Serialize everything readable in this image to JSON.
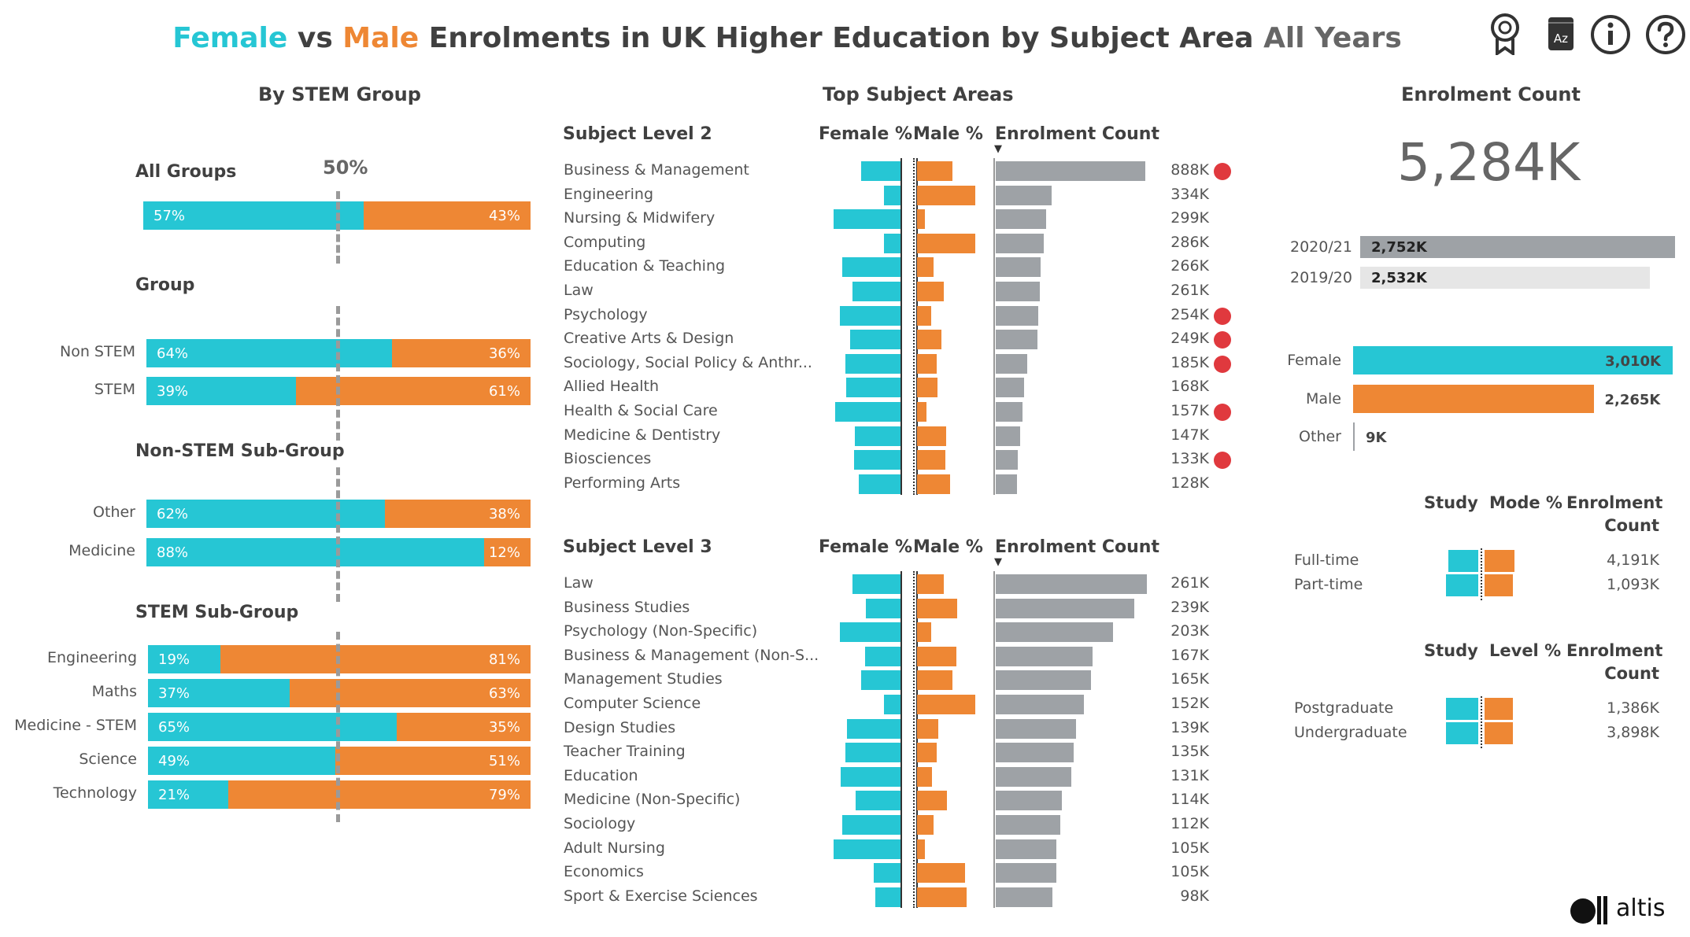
{
  "title": {
    "female": "Female",
    "vs": " vs ",
    "male": "Male",
    "rest": " Enrolments in UK Higher Education by Subject Area ",
    "years": "All Years"
  },
  "colors": {
    "female": "#26C6D4",
    "male": "#EE8734",
    "count": "#9EA2A6",
    "flag": "#E0393E"
  },
  "toolbar": {
    "icons": [
      "award-icon",
      "glossary-icon",
      "info-icon",
      "help-icon"
    ],
    "glossary_label": "Az"
  },
  "stem": {
    "header": "By STEM Group",
    "midline_label": "50%",
    "groups": [
      {
        "title": "All Groups",
        "rows": [
          {
            "label": "",
            "female": 57,
            "male": 43,
            "female_label": "57%",
            "male_label": "43%"
          }
        ]
      },
      {
        "title": "Group",
        "rows": [
          {
            "label": "Non STEM",
            "female": 64,
            "male": 36,
            "female_label": "64%",
            "male_label": "36%"
          },
          {
            "label": "STEM",
            "female": 39,
            "male": 61,
            "female_label": "39%",
            "male_label": "61%"
          }
        ]
      },
      {
        "title": "Non-STEM Sub-Group",
        "rows": [
          {
            "label": "Other",
            "female": 62,
            "male": 38,
            "female_label": "62%",
            "male_label": "38%"
          },
          {
            "label": "Medicine",
            "female": 88,
            "male": 12,
            "female_label": "88%",
            "male_label": "12%"
          }
        ]
      },
      {
        "title": "STEM Sub-Group",
        "rows": [
          {
            "label": "Engineering",
            "female": 19,
            "male": 81,
            "female_label": "19%",
            "male_label": "81%"
          },
          {
            "label": "Maths",
            "female": 37,
            "male": 63,
            "female_label": "37%",
            "male_label": "63%"
          },
          {
            "label": "Medicine - STEM",
            "female": 65,
            "male": 35,
            "female_label": "65%",
            "male_label": "35%"
          },
          {
            "label": "Science",
            "female": 49,
            "male": 51,
            "female_label": "49%",
            "male_label": "51%"
          },
          {
            "label": "Technology",
            "female": 21,
            "male": 79,
            "female_label": "21%",
            "male_label": "79%"
          }
        ]
      }
    ]
  },
  "top": {
    "header": "Top Subject Areas",
    "tables": [
      {
        "title": "Subject Level 2",
        "female_header": "Female %",
        "male_header": "Male %",
        "count_header": "Enrolment Count",
        "sort_indicator": "▼",
        "rows": [
          {
            "name": "Business & Management",
            "female": 53,
            "male": 47,
            "count": 888,
            "count_label": "888K",
            "flag": true
          },
          {
            "name": "Engineering",
            "female": 22,
            "male": 78,
            "count": 334,
            "count_label": "334K",
            "flag": false
          },
          {
            "name": "Nursing & Midwifery",
            "female": 89,
            "male": 11,
            "count": 299,
            "count_label": "299K",
            "flag": false
          },
          {
            "name": "Computing",
            "female": 22,
            "male": 78,
            "count": 286,
            "count_label": "286K",
            "flag": false
          },
          {
            "name": "Education & Teaching",
            "female": 78,
            "male": 22,
            "count": 266,
            "count_label": "266K",
            "flag": false
          },
          {
            "name": "Law",
            "female": 64,
            "male": 36,
            "count": 261,
            "count_label": "261K",
            "flag": false
          },
          {
            "name": "Psychology",
            "female": 81,
            "male": 19,
            "count": 254,
            "count_label": "254K",
            "flag": true
          },
          {
            "name": "Creative Arts & Design",
            "female": 67,
            "male": 33,
            "count": 249,
            "count_label": "249K",
            "flag": true
          },
          {
            "name": "Sociology, Social Policy & Anthr...",
            "female": 74,
            "male": 26,
            "count": 185,
            "count_label": "185K",
            "flag": true
          },
          {
            "name": "Allied Health",
            "female": 73,
            "male": 27,
            "count": 168,
            "count_label": "168K",
            "flag": false
          },
          {
            "name": "Health & Social Care",
            "female": 87,
            "male": 13,
            "count": 157,
            "count_label": "157K",
            "flag": true
          },
          {
            "name": "Medicine & Dentistry",
            "female": 61,
            "male": 39,
            "count": 147,
            "count_label": "147K",
            "flag": false
          },
          {
            "name": "Biosciences",
            "female": 62,
            "male": 38,
            "count": 133,
            "count_label": "133K",
            "flag": true
          },
          {
            "name": "Performing Arts",
            "female": 56,
            "male": 44,
            "count": 128,
            "count_label": "128K",
            "flag": false
          }
        ]
      },
      {
        "title": "Subject Level 3",
        "female_header": "Female %",
        "male_header": "Male %",
        "count_header": "Enrolment Count",
        "sort_indicator": "▼",
        "rows": [
          {
            "name": "Law",
            "female": 64,
            "male": 36,
            "count": 261,
            "count_label": "261K",
            "flag": false
          },
          {
            "name": "Business Studies",
            "female": 46,
            "male": 54,
            "count": 239,
            "count_label": "239K",
            "flag": false
          },
          {
            "name": "Psychology (Non-Specific)",
            "female": 81,
            "male": 19,
            "count": 203,
            "count_label": "203K",
            "flag": false
          },
          {
            "name": "Business & Management (Non-S...",
            "female": 47,
            "male": 53,
            "count": 167,
            "count_label": "167K",
            "flag": false
          },
          {
            "name": "Management Studies",
            "female": 53,
            "male": 47,
            "count": 165,
            "count_label": "165K",
            "flag": false
          },
          {
            "name": "Computer Science",
            "female": 22,
            "male": 78,
            "count": 152,
            "count_label": "152K",
            "flag": false
          },
          {
            "name": "Design Studies",
            "female": 72,
            "male": 28,
            "count": 139,
            "count_label": "139K",
            "flag": false
          },
          {
            "name": "Teacher Training",
            "female": 74,
            "male": 26,
            "count": 135,
            "count_label": "135K",
            "flag": false
          },
          {
            "name": "Education",
            "female": 80,
            "male": 20,
            "count": 131,
            "count_label": "131K",
            "flag": false
          },
          {
            "name": "Medicine (Non-Specific)",
            "female": 60,
            "male": 40,
            "count": 114,
            "count_label": "114K",
            "flag": false
          },
          {
            "name": "Sociology",
            "female": 78,
            "male": 22,
            "count": 112,
            "count_label": "112K",
            "flag": false
          },
          {
            "name": "Adult Nursing",
            "female": 90,
            "male": 10,
            "count": 105,
            "count_label": "105K",
            "flag": false
          },
          {
            "name": "Economics",
            "female": 36,
            "male": 64,
            "count": 105,
            "count_label": "105K",
            "flag": false
          },
          {
            "name": "Sport & Exercise Sciences",
            "female": 34,
            "male": 66,
            "count": 98,
            "count_label": "98K",
            "flag": false
          }
        ]
      }
    ]
  },
  "enrol": {
    "header": "Enrolment Count",
    "total": "5,284K",
    "years": [
      {
        "label": "2020/21",
        "value": 2752,
        "value_label": "2,752K",
        "color": "#9EA2A6"
      },
      {
        "label": "2019/20",
        "value": 2532,
        "value_label": "2,532K",
        "color": "#E6E6E6"
      }
    ],
    "sex": [
      {
        "label": "Female",
        "value": 3010,
        "value_label": "3,010K",
        "color": "#26C6D4"
      },
      {
        "label": "Male",
        "value": 2265,
        "value_label": "2,265K",
        "color": "#EE8734"
      },
      {
        "label": "Other",
        "value": 9,
        "value_label": "9K",
        "color": "#9EA2A6"
      }
    ],
    "mode": {
      "h1": "Study",
      "h2": "Mode %",
      "h3a": "Enrolment",
      "h3b": "Count",
      "rows": [
        {
          "label": "Full-time",
          "female": 55,
          "male": 45,
          "count_label": "4,191K"
        },
        {
          "label": "Part-time",
          "female": 58,
          "male": 42,
          "count_label": "1,093K"
        }
      ]
    },
    "level": {
      "h1": "Study",
      "h2": "Level %",
      "h3a": "Enrolment",
      "h3b": "Count",
      "rows": [
        {
          "label": "Postgraduate",
          "female": 58,
          "male": 42,
          "count_label": "1,386K"
        },
        {
          "label": "Undergraduate",
          "female": 58,
          "male": 42,
          "count_label": "3,898K"
        }
      ]
    }
  },
  "brand": {
    "name": "altis"
  }
}
